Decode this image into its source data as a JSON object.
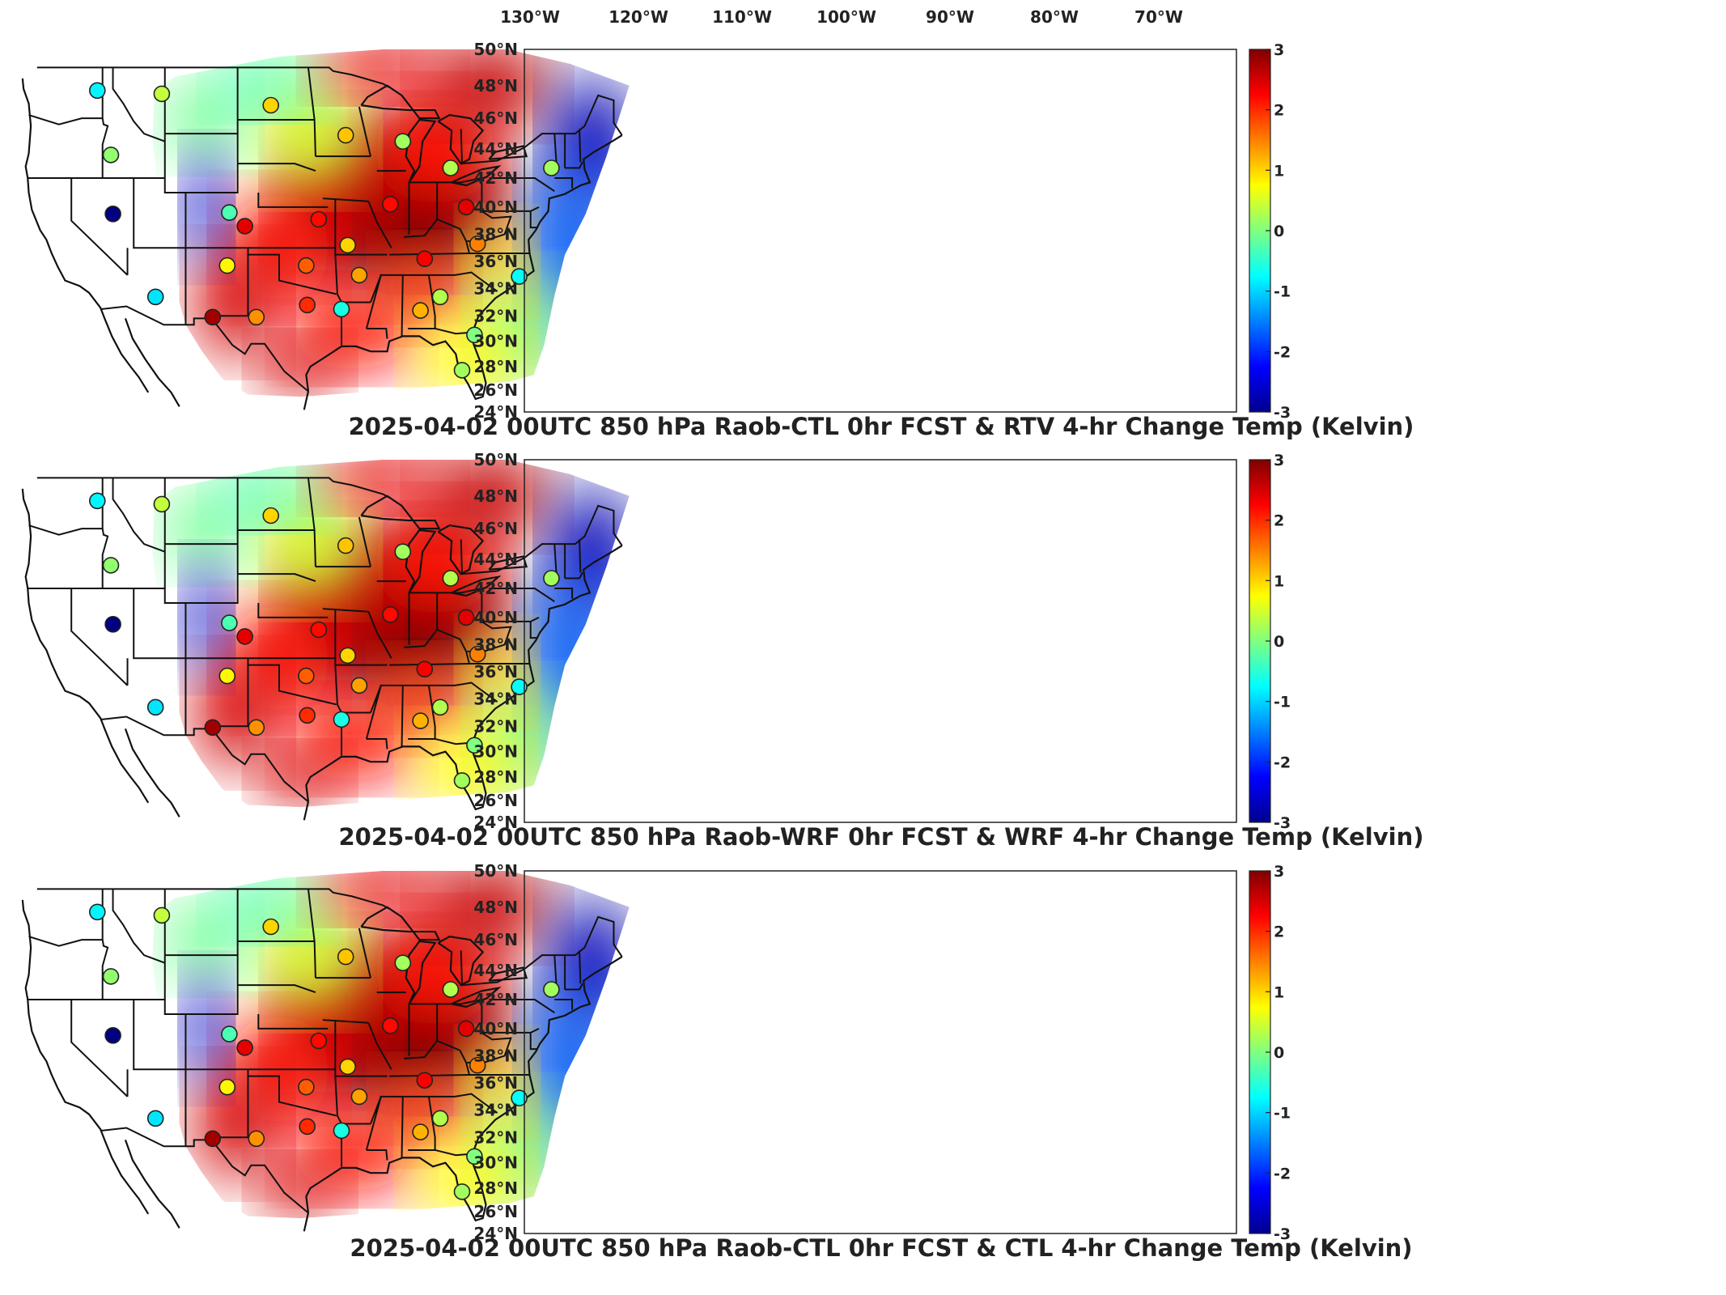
{
  "longitude_labels": [
    "130°W",
    "120°W",
    "110°W",
    "100°W",
    "90°W",
    "80°W",
    "70°W"
  ],
  "latitude_labels": [
    "50°N",
    "48°N",
    "46°N",
    "44°N",
    "42°N",
    "40°N",
    "38°N",
    "36°N",
    "34°N",
    "32°N",
    "30°N",
    "28°N",
    "26°N",
    "24°N"
  ],
  "colorbar": {
    "ticks": [
      "3",
      "2",
      "1",
      "0",
      "-1",
      "-2",
      "-3"
    ],
    "range": [
      -3,
      3
    ],
    "colormap": "jet"
  },
  "panels": [
    {
      "title": "2025-04-02 00UTC 850 hPa Raob-CTL 0hr FCST & RTV 4-hr Change Temp (Kelvin)"
    },
    {
      "title": "2025-04-02 00UTC 850 hPa Raob-WRF 0hr FCST & WRF 4-hr Change Temp (Kelvin)"
    },
    {
      "title": "2025-04-02 00UTC 850 hPa Raob-CTL 0hr FCST & CTL 4-hr Change Temp (Kelvin)"
    }
  ],
  "stations": [
    {
      "lon": -117.5,
      "lat": 47.7,
      "v": [
        -0.8,
        -0.8,
        -0.8
      ]
    },
    {
      "lon": -111.3,
      "lat": 47.5,
      "v": [
        0.4,
        0.4,
        0.4
      ]
    },
    {
      "lon": -100.8,
      "lat": 46.8,
      "v": [
        1.0,
        1.0,
        1.0
      ]
    },
    {
      "lon": -93.6,
      "lat": 44.9,
      "v": [
        1.1,
        1.1,
        1.1
      ]
    },
    {
      "lon": -88.1,
      "lat": 44.5,
      "v": [
        0.2,
        0.2,
        0.2
      ]
    },
    {
      "lon": -116.2,
      "lat": 43.6,
      "v": [
        0.1,
        0.1,
        0.1
      ]
    },
    {
      "lon": -83.5,
      "lat": 42.7,
      "v": [
        0.3,
        0.3,
        0.3
      ]
    },
    {
      "lon": -73.8,
      "lat": 42.7,
      "v": [
        0.2,
        0.2,
        0.2
      ]
    },
    {
      "lon": -89.3,
      "lat": 40.2,
      "v": [
        2.2,
        2.2,
        2.2
      ]
    },
    {
      "lon": -82.0,
      "lat": 40.0,
      "v": [
        2.4,
        2.4,
        2.4
      ]
    },
    {
      "lon": -116.0,
      "lat": 39.5,
      "v": [
        -3.0,
        -3.0,
        -3.0
      ]
    },
    {
      "lon": -104.8,
      "lat": 39.6,
      "v": [
        -0.3,
        -0.3,
        -0.3
      ]
    },
    {
      "lon": -96.2,
      "lat": 39.1,
      "v": [
        2.2,
        2.2,
        2.2
      ]
    },
    {
      "lon": -103.3,
      "lat": 38.6,
      "v": [
        2.4,
        2.4,
        2.4
      ]
    },
    {
      "lon": -93.4,
      "lat": 37.2,
      "v": [
        1.0,
        1.0,
        1.0
      ]
    },
    {
      "lon": -80.9,
      "lat": 37.3,
      "v": [
        1.5,
        1.5,
        1.5
      ]
    },
    {
      "lon": -86.0,
      "lat": 36.2,
      "v": [
        2.3,
        2.3,
        2.3
      ]
    },
    {
      "lon": -105.0,
      "lat": 35.7,
      "v": [
        0.8,
        0.8,
        0.8
      ]
    },
    {
      "lon": -97.4,
      "lat": 35.7,
      "v": [
        1.7,
        1.7,
        1.7
      ]
    },
    {
      "lon": -92.3,
      "lat": 35.0,
      "v": [
        1.3,
        1.3,
        1.3
      ]
    },
    {
      "lon": -76.9,
      "lat": 34.9,
      "v": [
        -0.7,
        -0.7,
        -0.7
      ]
    },
    {
      "lon": -111.9,
      "lat": 33.4,
      "v": [
        -0.9,
        -0.9,
        -0.9
      ]
    },
    {
      "lon": -84.5,
      "lat": 33.4,
      "v": [
        0.3,
        0.3,
        0.3
      ]
    },
    {
      "lon": -97.3,
      "lat": 32.8,
      "v": [
        2.0,
        2.0,
        2.0
      ]
    },
    {
      "lon": -86.4,
      "lat": 32.4,
      "v": [
        1.2,
        1.2,
        1.2
      ]
    },
    {
      "lon": -94.0,
      "lat": 32.5,
      "v": [
        -0.6,
        -0.6,
        -0.6
      ]
    },
    {
      "lon": -106.4,
      "lat": 31.9,
      "v": [
        2.8,
        2.8,
        2.8
      ]
    },
    {
      "lon": -102.2,
      "lat": 31.9,
      "v": [
        1.4,
        1.4,
        1.4
      ]
    },
    {
      "lon": -81.2,
      "lat": 30.5,
      "v": [
        0.0,
        0.0,
        0.0
      ]
    },
    {
      "lon": -82.4,
      "lat": 27.7,
      "v": [
        0.2,
        0.2,
        0.2
      ]
    }
  ]
}
